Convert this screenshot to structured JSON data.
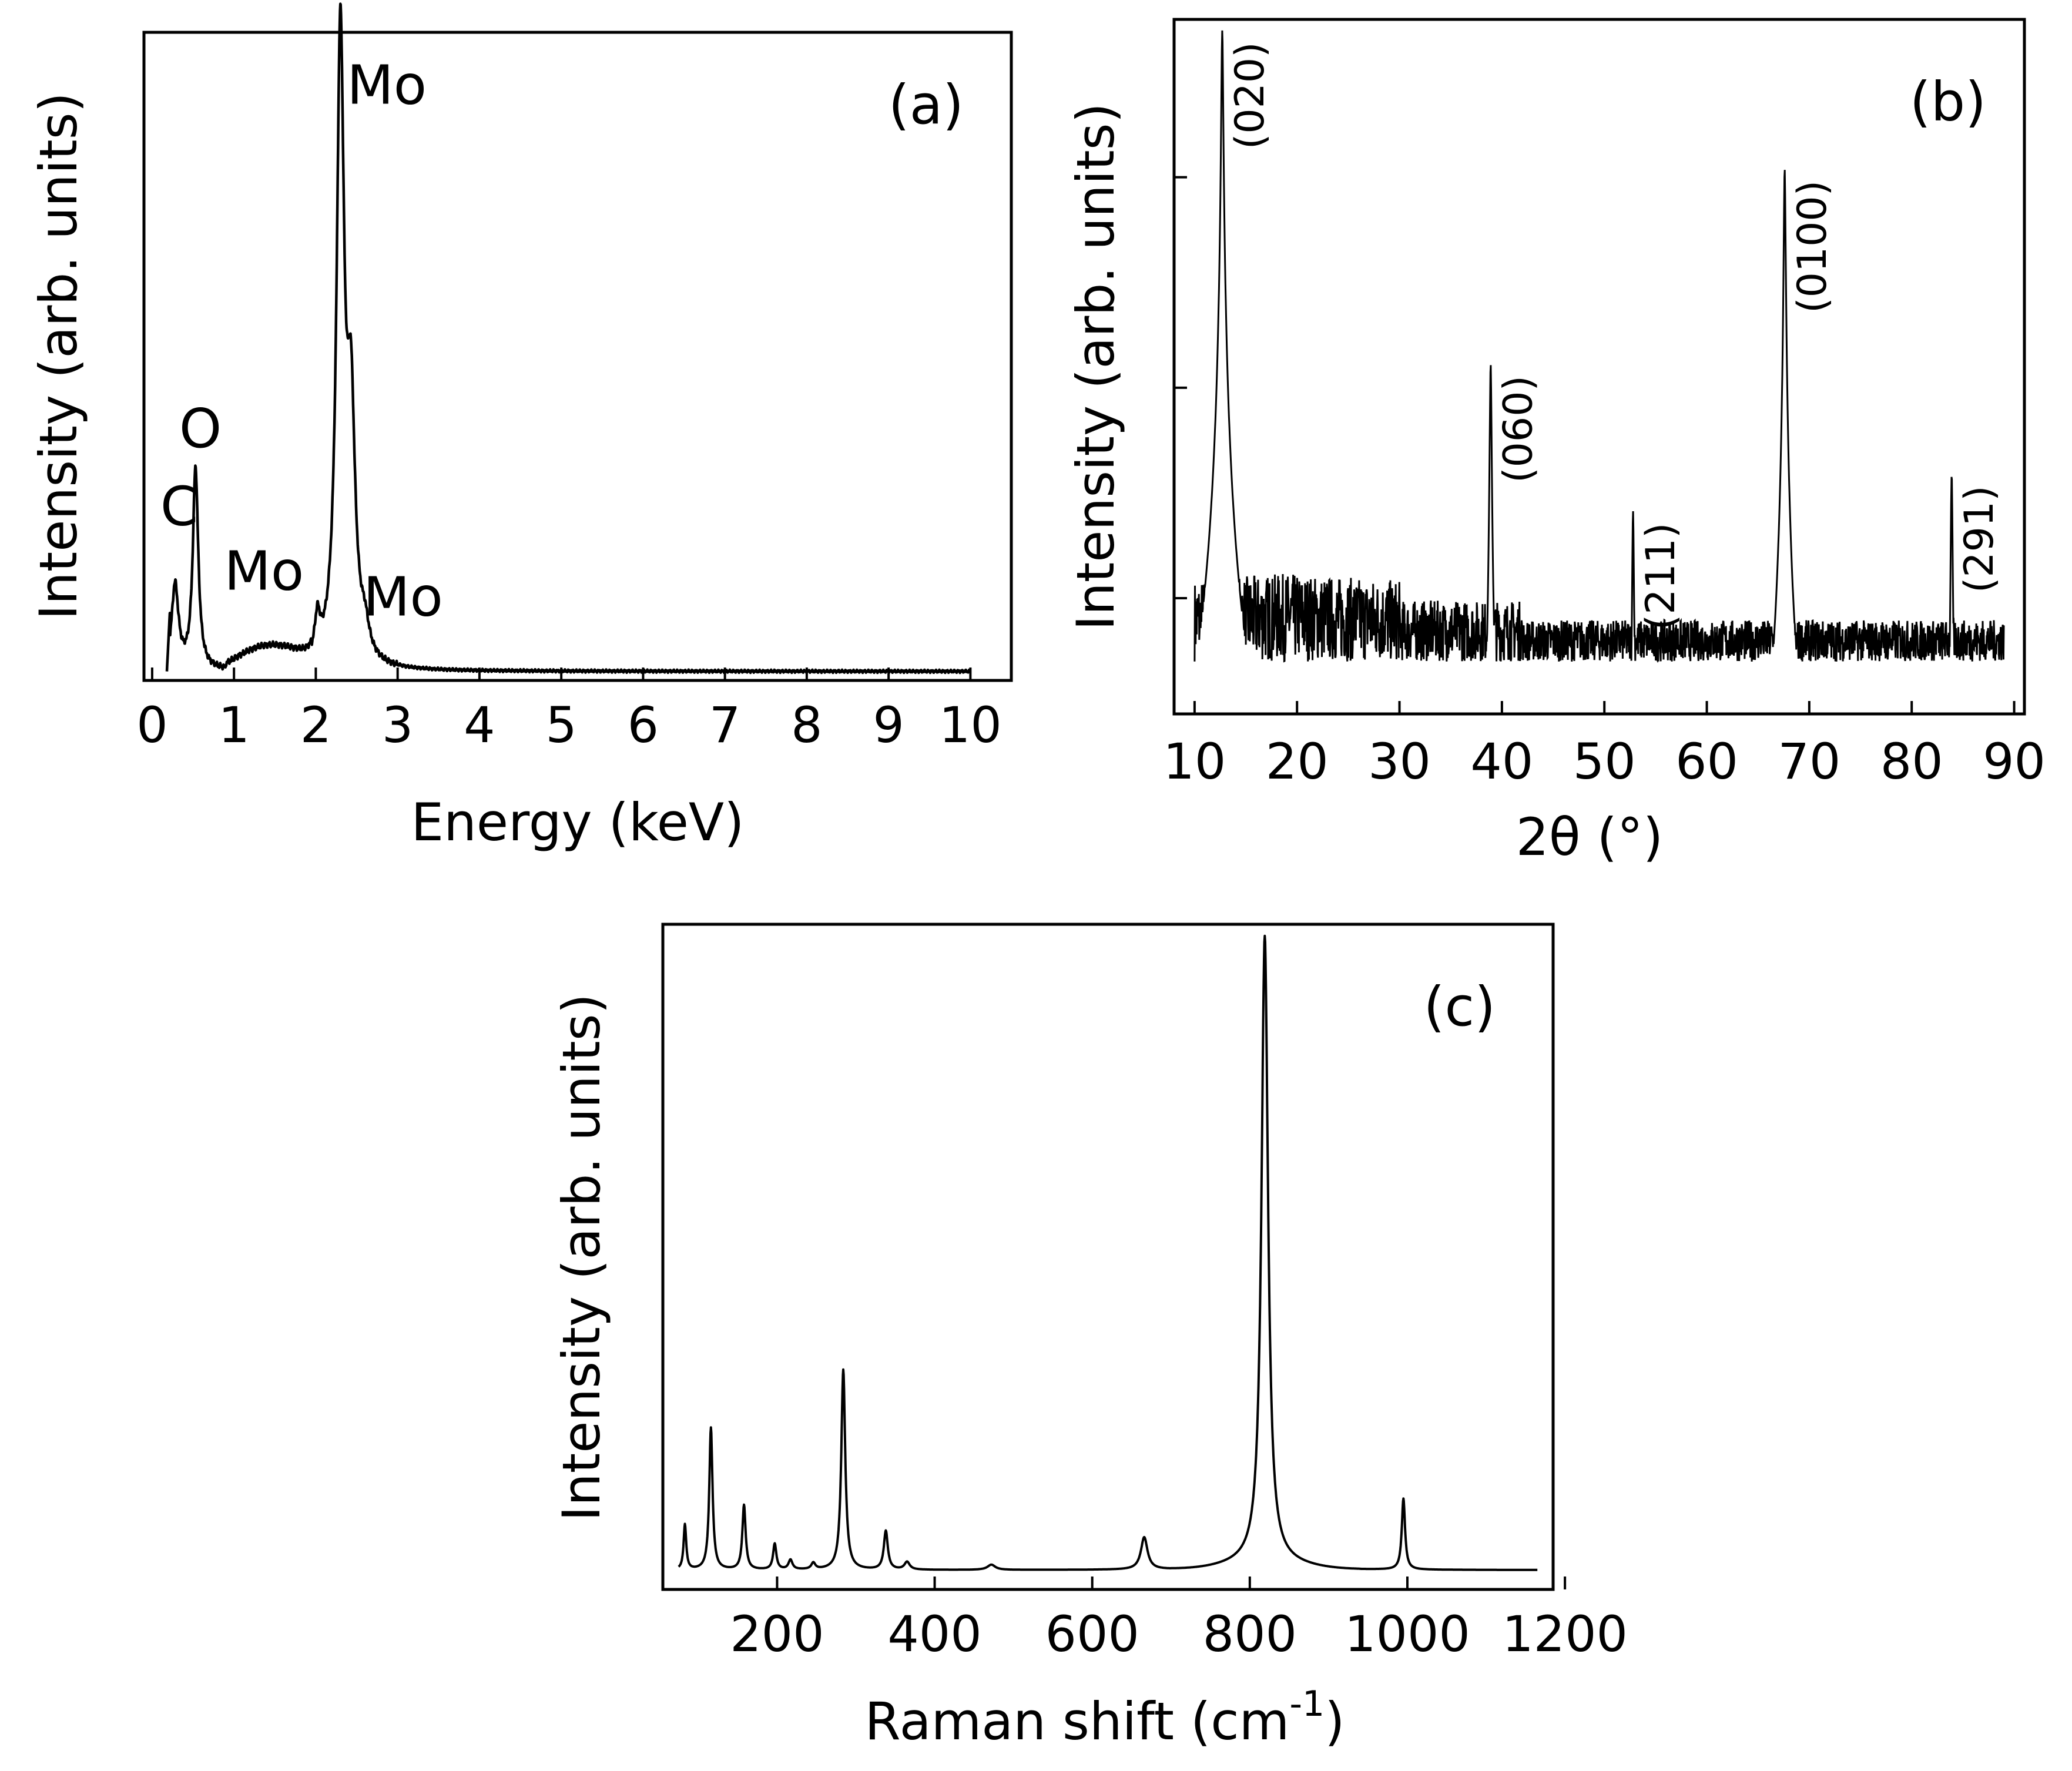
{
  "chart_data": [
    {
      "id": "a",
      "type": "line",
      "panel_label": "(a)",
      "xlabel": "Energy (keV)",
      "ylabel": "Intensity (arb. units)",
      "xlim": [
        -0.1,
        10.5
      ],
      "ylim": [
        0,
        100
      ],
      "x_ticks": [
        0,
        1,
        2,
        3,
        4,
        5,
        6,
        7,
        8,
        9,
        10
      ],
      "x_tick_labels": [
        "0",
        "1",
        "2",
        "3",
        "4",
        "5",
        "6",
        "7",
        "8",
        "9",
        "10"
      ],
      "baseline": 1.4,
      "peaks": [
        {
          "x": 0.28,
          "height": 13,
          "width": 0.05
        },
        {
          "x": 0.53,
          "height": 31,
          "width": 0.04
        },
        {
          "x": 2.02,
          "height": 6,
          "width": 0.04
        },
        {
          "x": 2.3,
          "height": 96,
          "width": 0.055
        },
        {
          "x": 2.43,
          "height": 36,
          "width": 0.06
        },
        {
          "x": 2.6,
          "height": 4,
          "width": 0.06
        }
      ],
      "hump": {
        "from": 0.9,
        "to": 1.95,
        "height": 3.2
      },
      "annotations": [
        {
          "text": "C",
          "x": 0.1,
          "y": 24
        },
        {
          "text": "O",
          "x": 0.33,
          "y": 36
        },
        {
          "text": "Mo",
          "x": 0.88,
          "y": 14
        },
        {
          "text": "Mo",
          "x": 2.38,
          "y": 89
        },
        {
          "text": "Mo",
          "x": 2.58,
          "y": 10
        }
      ]
    },
    {
      "id": "b",
      "type": "line",
      "panel_label": "(b)",
      "xlabel": "2θ (°)",
      "ylabel": "Intensity (arb. units)",
      "y_scale": "log",
      "xlim": [
        8,
        91
      ],
      "ylim_log10": [
        -0.55,
        2.75
      ],
      "x_ticks": [
        10,
        20,
        30,
        40,
        50,
        60,
        70,
        80,
        90
      ],
      "x_tick_labels": [
        "10",
        "20",
        "30",
        "40",
        "50",
        "60",
        "70",
        "80",
        "90"
      ],
      "y_ticks_log10": [
        0,
        1,
        2
      ],
      "noise_floor": 0.5,
      "peaks": [
        {
          "x": 12.7,
          "intensity": 500,
          "label": "(020)"
        },
        {
          "x": 38.9,
          "intensity": 13,
          "label": "(060)"
        },
        {
          "x": 52.8,
          "intensity": 2.6,
          "label": "(211)"
        },
        {
          "x": 67.6,
          "intensity": 110,
          "label": "(0100)"
        },
        {
          "x": 83.9,
          "intensity": 3.9,
          "label": "(291)"
        }
      ]
    },
    {
      "id": "c",
      "type": "line",
      "panel_label": "(c)",
      "xlabel": "Raman shift (cm-1)",
      "xlabel_parts": {
        "text": "Raman shift (cm",
        "sup": "-1",
        "close": ")"
      },
      "ylabel": "Intensity (arb. units)",
      "xlim": [
        55,
        1185
      ],
      "ylim": [
        -3,
        100
      ],
      "x_ticks": [
        200,
        400,
        600,
        800,
        1000,
        1200
      ],
      "x_tick_labels": [
        "200",
        "400",
        "600",
        "800",
        "1000",
        "1200"
      ],
      "baseline": 0,
      "peaks": [
        {
          "x": 83,
          "height": 7,
          "width": 2
        },
        {
          "x": 116,
          "height": 22,
          "width": 2.5
        },
        {
          "x": 158,
          "height": 10,
          "width": 2.5
        },
        {
          "x": 197,
          "height": 4,
          "width": 2.5
        },
        {
          "x": 217,
          "height": 1.5,
          "width": 3
        },
        {
          "x": 246,
          "height": 1,
          "width": 3
        },
        {
          "x": 284,
          "height": 31,
          "width": 3
        },
        {
          "x": 338,
          "height": 6,
          "width": 3
        },
        {
          "x": 365,
          "height": 1.2,
          "width": 4
        },
        {
          "x": 472,
          "height": 0.8,
          "width": 6
        },
        {
          "x": 666,
          "height": 5,
          "width": 5
        },
        {
          "x": 819,
          "height": 97,
          "width": 5
        },
        {
          "x": 995,
          "height": 11,
          "width": 2.5
        }
      ]
    }
  ]
}
